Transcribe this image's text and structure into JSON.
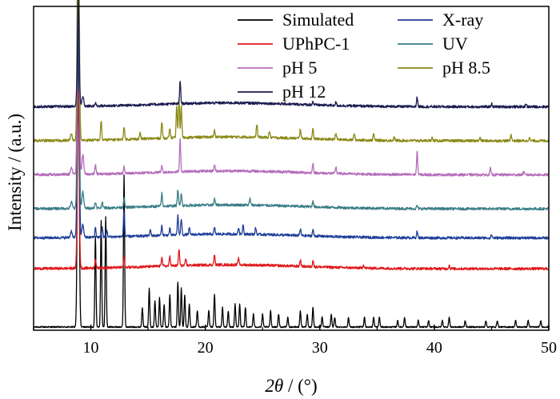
{
  "chart_data": {
    "type": "line",
    "xlabel_symbol": "2θ",
    "xlabel_unit": " / (°)",
    "ylabel": "Intensity / (a.u.)",
    "xlim": [
      5,
      50
    ],
    "xticks": [
      10,
      20,
      30,
      40,
      50
    ],
    "y_ticks_shown": false,
    "grid": false,
    "legend_position": "top-right",
    "legend_columns": 2,
    "series": [
      {
        "name": "Simulated",
        "color": "#000000",
        "offset": 0,
        "peaks": [
          [
            8.9,
            0.92
          ],
          [
            10.4,
            0.28
          ],
          [
            10.9,
            0.33
          ],
          [
            11.3,
            0.34
          ],
          [
            12.9,
            0.47
          ],
          [
            14.5,
            0.06
          ],
          [
            15.1,
            0.12
          ],
          [
            15.6,
            0.08
          ],
          [
            16.0,
            0.09
          ],
          [
            16.4,
            0.07
          ],
          [
            16.9,
            0.1
          ],
          [
            17.6,
            0.14
          ],
          [
            17.9,
            0.12
          ],
          [
            18.2,
            0.1
          ],
          [
            18.6,
            0.07
          ],
          [
            19.3,
            0.05
          ],
          [
            20.3,
            0.05
          ],
          [
            20.8,
            0.1
          ],
          [
            21.5,
            0.06
          ],
          [
            22.0,
            0.05
          ],
          [
            22.6,
            0.07
          ],
          [
            23.0,
            0.07
          ],
          [
            23.5,
            0.06
          ],
          [
            24.2,
            0.04
          ],
          [
            25.0,
            0.04
          ],
          [
            25.7,
            0.05
          ],
          [
            26.4,
            0.04
          ],
          [
            27.2,
            0.03
          ],
          [
            28.3,
            0.05
          ],
          [
            28.9,
            0.04
          ],
          [
            29.4,
            0.06
          ],
          [
            30.2,
            0.03
          ],
          [
            31.0,
            0.04
          ],
          [
            31.3,
            0.03
          ],
          [
            32.5,
            0.03
          ],
          [
            33.9,
            0.03
          ],
          [
            34.7,
            0.03
          ],
          [
            35.2,
            0.03
          ],
          [
            36.8,
            0.02
          ],
          [
            37.4,
            0.03
          ],
          [
            38.6,
            0.02
          ],
          [
            39.5,
            0.02
          ],
          [
            40.7,
            0.02
          ],
          [
            41.3,
            0.03
          ],
          [
            42.7,
            0.02
          ],
          [
            44.5,
            0.02
          ],
          [
            45.5,
            0.02
          ],
          [
            47.1,
            0.02
          ],
          [
            48.2,
            0.02
          ],
          [
            49.3,
            0.02
          ]
        ]
      },
      {
        "name": "UPhPC-1",
        "color": "#e0191c",
        "offset": 0.18,
        "peaks": [
          [
            8.9,
            0.55
          ],
          [
            10.4,
            0.03
          ],
          [
            12.9,
            0.03
          ],
          [
            16.2,
            0.03
          ],
          [
            16.9,
            0.03
          ],
          [
            17.7,
            0.05
          ],
          [
            18.3,
            0.02
          ],
          [
            20.8,
            0.03
          ],
          [
            22.9,
            0.02
          ],
          [
            28.3,
            0.02
          ],
          [
            29.4,
            0.02
          ],
          [
            33.8,
            0.01
          ],
          [
            41.3,
            0.01
          ]
        ]
      },
      {
        "name": "X-ray",
        "color": "#1f3f99",
        "offset": 0.275,
        "peaks": [
          [
            8.3,
            0.02
          ],
          [
            8.9,
            0.78
          ],
          [
            9.3,
            0.04
          ],
          [
            10.4,
            0.03
          ],
          [
            11.0,
            0.03
          ],
          [
            11.4,
            0.02
          ],
          [
            12.9,
            0.08
          ],
          [
            15.2,
            0.02
          ],
          [
            16.2,
            0.03
          ],
          [
            16.9,
            0.02
          ],
          [
            17.6,
            0.06
          ],
          [
            17.9,
            0.05
          ],
          [
            18.6,
            0.02
          ],
          [
            20.8,
            0.02
          ],
          [
            22.9,
            0.02
          ],
          [
            23.3,
            0.03
          ],
          [
            24.4,
            0.02
          ],
          [
            28.3,
            0.02
          ],
          [
            29.4,
            0.02
          ],
          [
            38.5,
            0.02
          ],
          [
            45.0,
            0.01
          ]
        ]
      },
      {
        "name": "UV",
        "color": "#3a7d87",
        "offset": 0.365,
        "peaks": [
          [
            8.3,
            0.02
          ],
          [
            8.9,
            0.8
          ],
          [
            9.3,
            0.05
          ],
          [
            10.4,
            0.02
          ],
          [
            11.0,
            0.02
          ],
          [
            12.9,
            0.03
          ],
          [
            16.2,
            0.04
          ],
          [
            17.6,
            0.05
          ],
          [
            17.9,
            0.04
          ],
          [
            20.8,
            0.02
          ],
          [
            23.9,
            0.02
          ],
          [
            29.4,
            0.02
          ],
          [
            38.5,
            0.01
          ]
        ]
      },
      {
        "name": "pH 5",
        "color": "#b56cba",
        "offset": 0.47,
        "peaks": [
          [
            8.3,
            0.02
          ],
          [
            8.9,
            0.85
          ],
          [
            9.3,
            0.06
          ],
          [
            10.4,
            0.03
          ],
          [
            12.9,
            0.02
          ],
          [
            16.2,
            0.02
          ],
          [
            17.8,
            0.1
          ],
          [
            20.8,
            0.02
          ],
          [
            29.4,
            0.03
          ],
          [
            31.4,
            0.02
          ],
          [
            38.5,
            0.07
          ],
          [
            44.9,
            0.02
          ],
          [
            47.8,
            0.01
          ]
        ]
      },
      {
        "name": "pH 8.5",
        "color": "#8b8a18",
        "offset": 0.575,
        "peaks": [
          [
            8.3,
            0.02
          ],
          [
            8.9,
            0.9
          ],
          [
            10.9,
            0.06
          ],
          [
            12.9,
            0.04
          ],
          [
            14.3,
            0.02
          ],
          [
            16.2,
            0.05
          ],
          [
            16.9,
            0.03
          ],
          [
            17.5,
            0.1
          ],
          [
            17.7,
            0.12
          ],
          [
            17.9,
            0.1
          ],
          [
            20.8,
            0.02
          ],
          [
            24.5,
            0.04
          ],
          [
            25.6,
            0.02
          ],
          [
            28.3,
            0.03
          ],
          [
            29.4,
            0.03
          ],
          [
            31.4,
            0.02
          ],
          [
            33.0,
            0.02
          ],
          [
            34.7,
            0.02
          ],
          [
            36.5,
            0.01
          ],
          [
            39.8,
            0.01
          ],
          [
            44.0,
            0.01
          ],
          [
            46.7,
            0.02
          ],
          [
            48.3,
            0.01
          ]
        ]
      },
      {
        "name": "pH 12",
        "color": "#1b1b50",
        "offset": 0.68,
        "peaks": [
          [
            8.9,
            0.34
          ],
          [
            9.3,
            0.03
          ],
          [
            10.4,
            0.01
          ],
          [
            17.8,
            0.07
          ],
          [
            29.4,
            0.01
          ],
          [
            31.4,
            0.01
          ],
          [
            38.5,
            0.03
          ],
          [
            45.0,
            0.01
          ],
          [
            48.0,
            0.01
          ]
        ]
      }
    ]
  },
  "legend": {
    "items": [
      {
        "label": "Simulated",
        "color": "#000000",
        "col": 0,
        "row": 0
      },
      {
        "label": "UPhPC-1",
        "color": "#e0191c",
        "col": 0,
        "row": 1
      },
      {
        "label": "pH 5",
        "color": "#b56cba",
        "col": 0,
        "row": 2
      },
      {
        "label": "pH 12",
        "color": "#1b1b50",
        "col": 0,
        "row": 3
      },
      {
        "label": "X-ray",
        "color": "#1f3f99",
        "col": 1,
        "row": 0
      },
      {
        "label": "UV",
        "color": "#3a7d87",
        "col": 1,
        "row": 1
      },
      {
        "label": "pH 8.5",
        "color": "#8b8a18",
        "col": 1,
        "row": 2
      }
    ]
  }
}
